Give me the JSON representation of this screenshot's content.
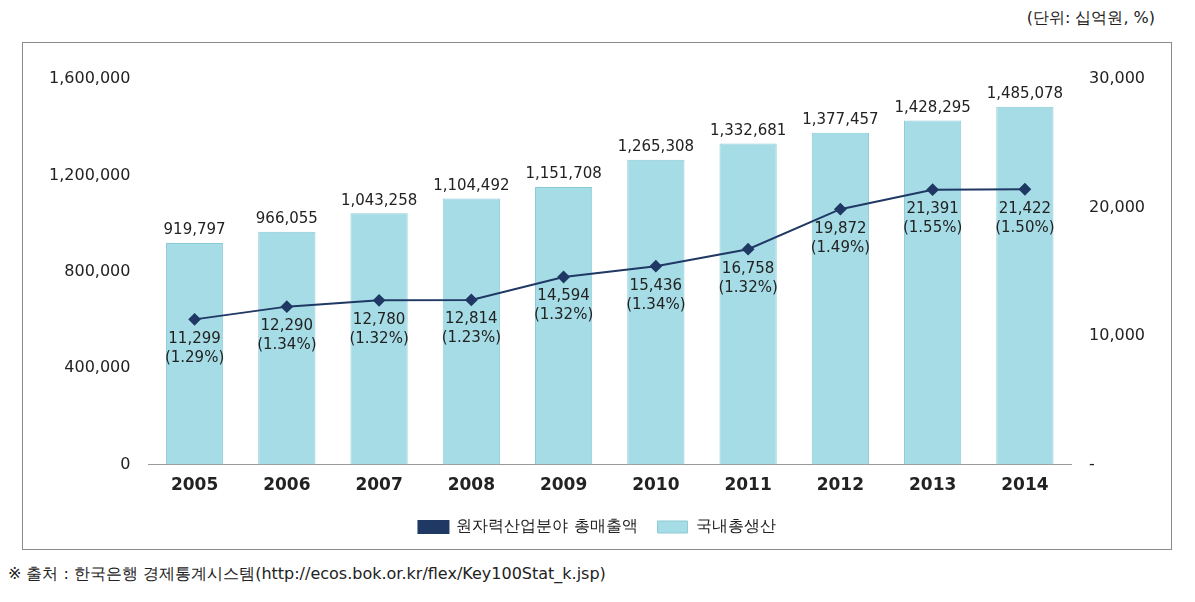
{
  "chart_data": {
    "type": "bar",
    "title": "(단위: 십억원, %)",
    "source": "※ 출처 : 한국은행 경제통계시스템(http://ecos.bok.or.kr/flex/Key100Stat_k.jsp)",
    "categories": [
      "2005",
      "2006",
      "2007",
      "2008",
      "2009",
      "2010",
      "2011",
      "2012",
      "2013",
      "2014"
    ],
    "series": [
      {
        "name": "국내총생산",
        "type": "bar",
        "color": "#a6dce6",
        "values": [
          919797,
          966055,
          1043258,
          1104492,
          1151708,
          1265308,
          1332681,
          1377457,
          1428295,
          1485078
        ],
        "value_labels": [
          "919,797",
          "966,055",
          "1,043,258",
          "1,104,492",
          "1,151,708",
          "1,265,308",
          "1,332,681",
          "1,377,457",
          "1,428,295",
          "1,485,078"
        ]
      },
      {
        "name": "원자력산업분야 총매출액",
        "type": "line",
        "axis": "y2",
        "color": "#1f3864",
        "marker": "diamond",
        "values": [
          11299,
          12290,
          12780,
          12814,
          14594,
          15436,
          16758,
          19872,
          21391,
          21422
        ],
        "value_labels": [
          "11,299 (1.29%)",
          "12,290 (1.34%)",
          "12,780 (1.32%)",
          "12,814 (1.23%)",
          "14,594 (1.32%)",
          "15,436 (1.34%)",
          "16,758 (1.32%)",
          "19,872 (1.49%)",
          "21,391 (1.55%)",
          "21,422 (1.50%)"
        ]
      }
    ],
    "ylim": [
      0,
      1600000
    ],
    "yticks": [
      0,
      {
        "value": 400000,
        "label": "400,000"
      },
      {
        "value": 800000,
        "label": "800,000"
      },
      {
        "value": 1200000,
        "label": "1,200,000"
      },
      {
        "value": 1600000,
        "label": "1,600,000"
      }
    ],
    "y2lim": [
      0,
      30000
    ],
    "y2ticks": [
      {
        "value": 0,
        "label": "-"
      },
      {
        "value": 10000,
        "label": "10,000"
      },
      {
        "value": 20000,
        "label": "20,000"
      },
      {
        "value": 30000,
        "label": "30,000"
      }
    ],
    "data_labels": true,
    "legend": "bottom",
    "grid": false
  }
}
